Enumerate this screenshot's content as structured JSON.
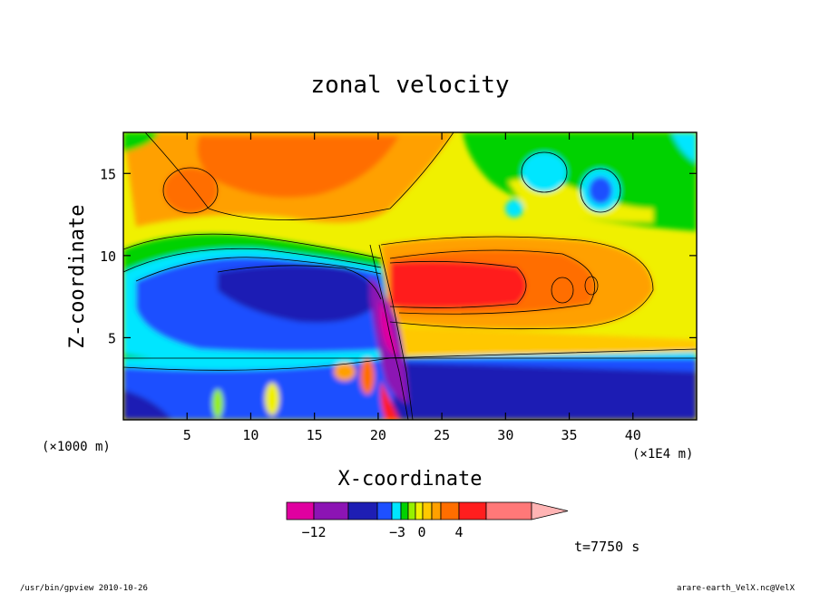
{
  "chart_data": {
    "type": "heatmap",
    "title": "zonal velocity",
    "xlabel": "X-coordinate",
    "ylabel": "Z-coordinate",
    "x_unit": "(×1000 m)",
    "x_scale_note": "(×1E4 m)",
    "x_ticks": [
      5,
      10,
      15,
      20,
      25,
      30,
      35,
      40
    ],
    "y_ticks": [
      5,
      10,
      15
    ],
    "xlim": [
      0,
      45
    ],
    "ylim": [
      0,
      17.5
    ],
    "colorbar": {
      "labels": [
        {
          "value": -12,
          "text": "−12"
        },
        {
          "value": -3,
          "text": "−3"
        },
        {
          "value": 0,
          "text": "0"
        },
        {
          "value": 4,
          "text": "4"
        }
      ],
      "colors": [
        "#e000a0",
        "#8c14b4",
        "#1e1eb4",
        "#1e50ff",
        "#00e6ff",
        "#00d200",
        "#96f000",
        "#f0f000",
        "#ffc800",
        "#ffa000",
        "#ff6e00",
        "#ff1e1e",
        "#ff7878",
        "#ffb4b4"
      ]
    },
    "annotation": "t=7750 s",
    "features": [
      {
        "x": 8,
        "z": 8.5,
        "u": -5
      },
      {
        "x": 14,
        "z": 8.0,
        "u": -6
      },
      {
        "x": 21,
        "z": 6.5,
        "u": -12
      },
      {
        "x": 27,
        "z": 8.0,
        "u": 5
      },
      {
        "x": 34,
        "z": 8.0,
        "u": 3
      },
      {
        "x": 30,
        "z": 2.0,
        "u": -6
      },
      {
        "x": 10,
        "z": 15.0,
        "u": 3
      },
      {
        "x": 37.5,
        "z": 13.5,
        "u": -4
      }
    ]
  },
  "footer": {
    "left": "/usr/bin/gpview   2010-10-26",
    "right": "arare-earth_VelX.nc@VelX"
  }
}
